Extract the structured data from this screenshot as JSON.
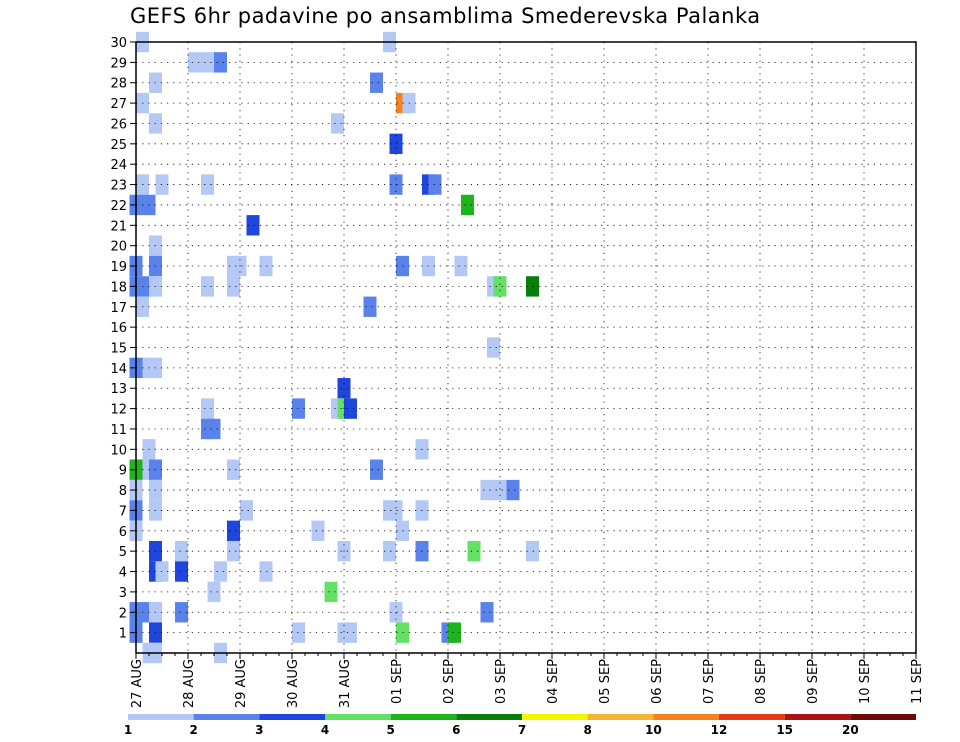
{
  "chart_data": {
    "type": "heatmap",
    "title": "GEFS 6hr padavine po ansamblima Smederevska Palanka",
    "x_tick_labels": [
      "27 AUG",
      "28 AUG",
      "29 AUG",
      "30 AUG",
      "31 AUG",
      "01 SEP",
      "02 SEP",
      "03 SEP",
      "04 SEP",
      "05 SEP",
      "06 SEP",
      "07 SEP",
      "08 SEP",
      "09 SEP",
      "10 SEP",
      "11 SEP"
    ],
    "x_range_steps": [
      0,
      60
    ],
    "x_step": "6hr",
    "y_tick_labels": [
      "1",
      "2",
      "3",
      "4",
      "5",
      "6",
      "7",
      "8",
      "9",
      "10",
      "11",
      "12",
      "13",
      "14",
      "15",
      "16",
      "17",
      "18",
      "19",
      "20",
      "21",
      "22",
      "23",
      "24",
      "25",
      "26",
      "27",
      "28",
      "29",
      "30"
    ],
    "y_range_members": [
      0,
      30
    ],
    "grid": true,
    "colorbar": {
      "labels": [
        "1",
        "2",
        "3",
        "4",
        "5",
        "6",
        "7",
        "8",
        "10",
        "12",
        "15",
        "20"
      ],
      "colors": [
        "#b4c8f5",
        "#5a82eb",
        "#1e46dc",
        "#64e164",
        "#1eb41e",
        "#0a7d0a",
        "#f5f500",
        "#f5b432",
        "#f5821e",
        "#e63c14",
        "#aa1414",
        "#6e0a0a"
      ]
    },
    "cells": [
      [
        0.5,
        30,
        1
      ],
      [
        19.5,
        30,
        1
      ],
      [
        4.5,
        29,
        1
      ],
      [
        5.5,
        29,
        1
      ],
      [
        6.5,
        29,
        2
      ],
      [
        1.5,
        28,
        1
      ],
      [
        18.5,
        28,
        2
      ],
      [
        0.5,
        27,
        1
      ],
      [
        20.5,
        27,
        10
      ],
      [
        21,
        27,
        1
      ],
      [
        1.5,
        26,
        1
      ],
      [
        15.5,
        26,
        1
      ],
      [
        20,
        25,
        3
      ],
      [
        0.5,
        23,
        1
      ],
      [
        2,
        23,
        1
      ],
      [
        5.5,
        23,
        1
      ],
      [
        20,
        23,
        2
      ],
      [
        22.5,
        23,
        3
      ],
      [
        23,
        23,
        2
      ],
      [
        0,
        22,
        2
      ],
      [
        1,
        22,
        2
      ],
      [
        25.5,
        22,
        5
      ],
      [
        9,
        21,
        3
      ],
      [
        1.5,
        20,
        1
      ],
      [
        0,
        19,
        2
      ],
      [
        1.5,
        19,
        2
      ],
      [
        7.5,
        19,
        1
      ],
      [
        8,
        19,
        1
      ],
      [
        10,
        19,
        1
      ],
      [
        20.5,
        19,
        2
      ],
      [
        22.5,
        19,
        1
      ],
      [
        25,
        19,
        1
      ],
      [
        0,
        18,
        2
      ],
      [
        1,
        18,
        2
      ],
      [
        1.5,
        18,
        1
      ],
      [
        5.5,
        18,
        1
      ],
      [
        7.5,
        18,
        1
      ],
      [
        27.5,
        18,
        1
      ],
      [
        28,
        18,
        4
      ],
      [
        30.5,
        18,
        6
      ],
      [
        0.5,
        17,
        1
      ],
      [
        18,
        17,
        2
      ],
      [
        27.5,
        15,
        1
      ],
      [
        0,
        14,
        2
      ],
      [
        1,
        14,
        1
      ],
      [
        1.5,
        14,
        1
      ],
      [
        16,
        13,
        3
      ],
      [
        5.5,
        12,
        1
      ],
      [
        12.5,
        12,
        2
      ],
      [
        15.5,
        12,
        1
      ],
      [
        16,
        12,
        4
      ],
      [
        16.5,
        12,
        3
      ],
      [
        5.5,
        11,
        2
      ],
      [
        6,
        11,
        2
      ],
      [
        1,
        10,
        1
      ],
      [
        22,
        10,
        1
      ],
      [
        0,
        9,
        5
      ],
      [
        1,
        9,
        1
      ],
      [
        1.5,
        9,
        2
      ],
      [
        7.5,
        9,
        1
      ],
      [
        18.5,
        9,
        2
      ],
      [
        0,
        8,
        1
      ],
      [
        1.5,
        8,
        1
      ],
      [
        27,
        8,
        1
      ],
      [
        28,
        8,
        1
      ],
      [
        29,
        8,
        2
      ],
      [
        0,
        7,
        2
      ],
      [
        1.5,
        7,
        1
      ],
      [
        8.5,
        7,
        1
      ],
      [
        19.5,
        7,
        1
      ],
      [
        20,
        7,
        1
      ],
      [
        22,
        7,
        1
      ],
      [
        0,
        6,
        1
      ],
      [
        7.5,
        6,
        3
      ],
      [
        14,
        6,
        1
      ],
      [
        20.5,
        6,
        1
      ],
      [
        1.5,
        5,
        3
      ],
      [
        3.5,
        5,
        1
      ],
      [
        7.5,
        5,
        1
      ],
      [
        16,
        5,
        1
      ],
      [
        19.5,
        5,
        1
      ],
      [
        22,
        5,
        2
      ],
      [
        26,
        5,
        4
      ],
      [
        30.5,
        5,
        1
      ],
      [
        1.5,
        4,
        3
      ],
      [
        2,
        4,
        1
      ],
      [
        3.5,
        4,
        3
      ],
      [
        6.5,
        4,
        1
      ],
      [
        10,
        4,
        1
      ],
      [
        6,
        3,
        1
      ],
      [
        15,
        3,
        4
      ],
      [
        0,
        2,
        2
      ],
      [
        1,
        2,
        2
      ],
      [
        1.5,
        2,
        1
      ],
      [
        3.5,
        2,
        2
      ],
      [
        20,
        2,
        1
      ],
      [
        27,
        2,
        2
      ],
      [
        0,
        1,
        2
      ],
      [
        1.5,
        1,
        3
      ],
      [
        12.5,
        1,
        1
      ],
      [
        16,
        1,
        1
      ],
      [
        16.5,
        1,
        1
      ],
      [
        20.5,
        1,
        4
      ],
      [
        24,
        1,
        2
      ],
      [
        24.5,
        1,
        5
      ],
      [
        1,
        0,
        1
      ],
      [
        1.5,
        0,
        1
      ],
      [
        6.5,
        0,
        1
      ]
    ]
  }
}
